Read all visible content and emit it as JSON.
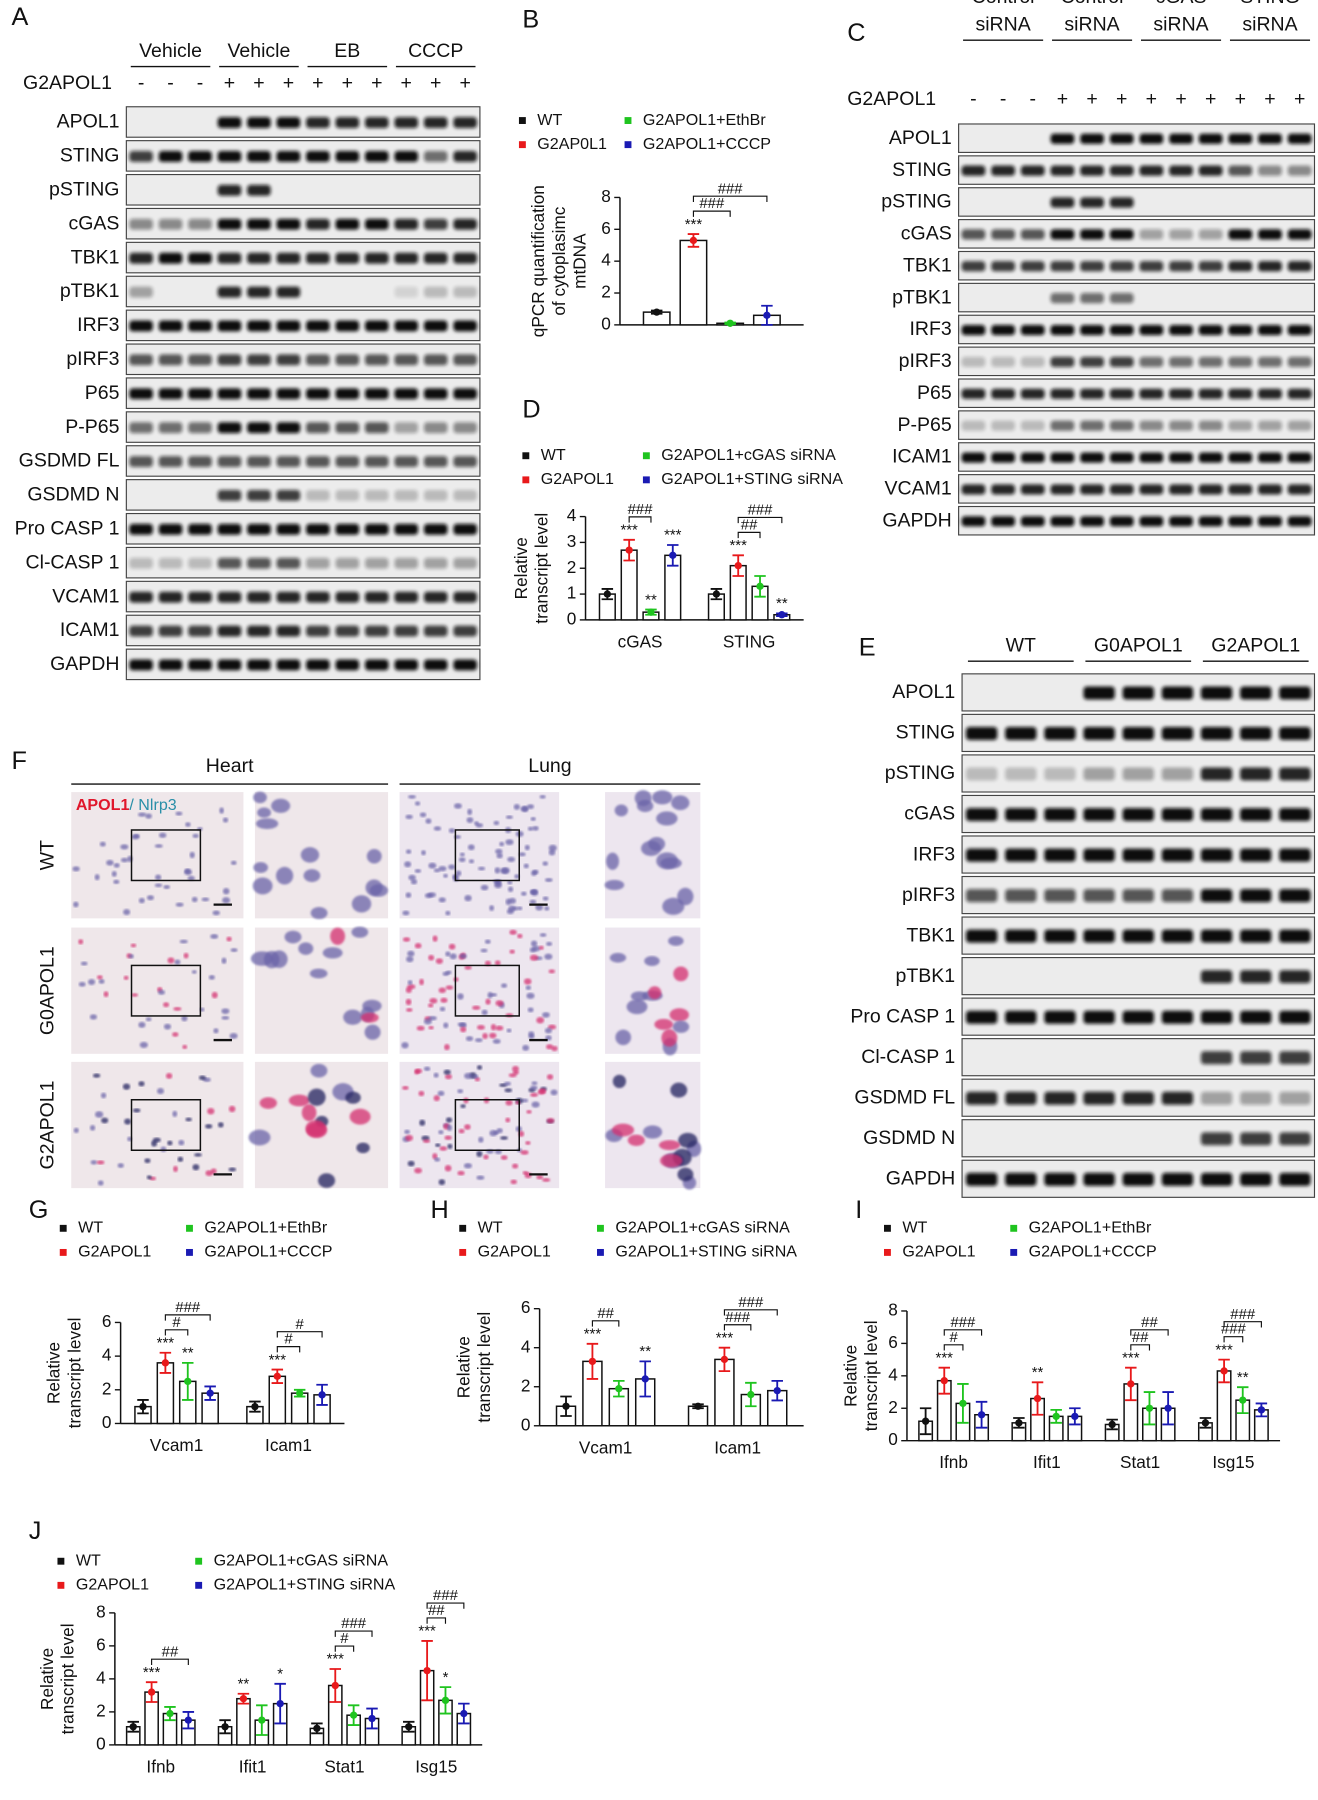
{
  "blots": [
    {
      "panel": "A",
      "groups": [
        "Vehicle",
        "Vehicle",
        "EB",
        "CCCP"
      ],
      "treatment": "G2APOL1",
      "lanes": [
        "-",
        "-",
        "-",
        "+",
        "+",
        "+",
        "+",
        "+",
        "+",
        "+",
        "+",
        "+"
      ],
      "rows": [
        "APOL1",
        "STING",
        "pSTING",
        "cGAS",
        "TBK1",
        "pTBK1",
        "IRF3",
        "pIRF3",
        "P65",
        "P-P65",
        "GSDMD FL",
        "GSDMD N",
        "Pro CASP 1",
        "Cl-CASP 1",
        "VCAM1",
        "ICAM1",
        "GAPDH"
      ]
    },
    {
      "panel": "C",
      "groups": [
        [
          "Control",
          "siRNA"
        ],
        [
          "Control",
          "siRNA"
        ],
        [
          "cGAS",
          "siRNA"
        ],
        [
          "STING",
          "siRNA"
        ]
      ],
      "treatment": "G2APOL1",
      "lanes": [
        "-",
        "-",
        "-",
        "+",
        "+",
        "+",
        "+",
        "+",
        "+",
        "+",
        "+",
        "+"
      ],
      "rows": [
        "APOL1",
        "STING",
        "pSTING",
        "cGAS",
        "TBK1",
        "pTBK1",
        "IRF3",
        "pIRF3",
        "P65",
        "P-P65",
        "ICAM1",
        "VCAM1",
        "GAPDH"
      ]
    },
    {
      "panel": "E",
      "groups": [
        "WT",
        "G0APOL1",
        "G2APOL1"
      ],
      "rows": [
        "APOL1",
        "STING",
        "pSTING",
        "cGAS",
        "IRF3",
        "pIRF3",
        "TBK1",
        "pTBK1",
        "Pro CASP 1",
        "Cl-CASP 1",
        "GSDMD FL",
        "GSDMD N",
        "GAPDH"
      ]
    }
  ],
  "histology": {
    "panel": "F",
    "tissues": [
      "Heart",
      "Lung"
    ],
    "stain": [
      "APOL1",
      "/ Nlrp3"
    ],
    "genotypes": [
      "WT",
      "G0APOL1",
      "G2APOL1"
    ]
  },
  "chart_data": [
    {
      "panel": "B",
      "type": "bar",
      "ylabel": [
        "qPCR quantification",
        "of cytoplasimc",
        "mtDNA"
      ],
      "categories": [
        null
      ],
      "series": [
        {
          "name": "WT",
          "color": "#111111",
          "values": [
            0.8
          ],
          "errors": [
            0.1
          ]
        },
        {
          "name": "G2AP0L1",
          "color": "#e8191b",
          "values": [
            5.3
          ],
          "errors": [
            0.4
          ],
          "stars": [
            "***"
          ]
        },
        {
          "name": "G2APOL1+EthBr",
          "color": "#1fc41f",
          "values": [
            0.1
          ],
          "errors": [
            0.05
          ]
        },
        {
          "name": "G2APOL1+CCCP",
          "color": "#1a1ab3",
          "values": [
            0.6
          ],
          "errors": [
            0.6
          ]
        }
      ],
      "brackets": [
        {
          "category": 0,
          "from": 1,
          "to": 2,
          "label": "###"
        },
        {
          "category": 0,
          "from": 1,
          "to": 3,
          "label": "###"
        }
      ],
      "ylim": [
        0,
        8
      ],
      "yticks": [
        0,
        2,
        4,
        6,
        8
      ]
    },
    {
      "panel": "D",
      "type": "bar",
      "ylabel": [
        "Relative",
        "transcript level"
      ],
      "categories": [
        "cGAS",
        "STING"
      ],
      "series": [
        {
          "name": "WT",
          "color": "#111111",
          "values": [
            1.0,
            1.0
          ],
          "errors": [
            0.2,
            0.2
          ]
        },
        {
          "name": "G2APOL1",
          "color": "#e8191b",
          "values": [
            2.7,
            2.1
          ],
          "errors": [
            0.4,
            0.4
          ],
          "stars": [
            "***",
            "***"
          ]
        },
        {
          "name": "G2APOL1+cGAS siRNA",
          "color": "#1fc41f",
          "values": [
            0.3,
            1.3
          ],
          "errors": [
            0.1,
            0.4
          ],
          "stars": [
            "**",
            null
          ]
        },
        {
          "name": "G2APOL1+STING siRNA",
          "color": "#1a1ab3",
          "values": [
            2.5,
            0.2
          ],
          "errors": [
            0.4,
            0.05
          ],
          "stars": [
            "***",
            "**"
          ]
        }
      ],
      "brackets": [
        {
          "category": 0,
          "from": 1,
          "to": 2,
          "label": "###"
        },
        {
          "category": 1,
          "from": 1,
          "to": 2,
          "label": "##"
        },
        {
          "category": 1,
          "from": 1,
          "to": 3,
          "label": "###"
        }
      ],
      "ylim": [
        0,
        4
      ],
      "yticks": [
        0,
        1,
        2,
        3,
        4
      ]
    },
    {
      "panel": "G",
      "type": "bar",
      "ylabel": [
        "Relative",
        "transcript level"
      ],
      "categories": [
        "Vcam1",
        "Icam1"
      ],
      "series": [
        {
          "name": "WT",
          "color": "#111111",
          "values": [
            1.0,
            1.0
          ],
          "errors": [
            0.4,
            0.3
          ]
        },
        {
          "name": "G2APOL1",
          "color": "#e8191b",
          "values": [
            3.6,
            2.8
          ],
          "errors": [
            0.6,
            0.4
          ],
          "stars": [
            "***",
            "***"
          ]
        },
        {
          "name": "G2APOL1+EthBr",
          "color": "#1fc41f",
          "values": [
            2.5,
            1.8
          ],
          "errors": [
            1.1,
            0.2
          ],
          "stars": [
            "**",
            null
          ]
        },
        {
          "name": "G2APOL1+CCCP",
          "color": "#1a1ab3",
          "values": [
            1.8,
            1.7
          ],
          "errors": [
            0.4,
            0.6
          ]
        }
      ],
      "brackets": [
        {
          "category": 0,
          "from": 1,
          "to": 2,
          "label": "#"
        },
        {
          "category": 0,
          "from": 1,
          "to": 3,
          "label": "###"
        },
        {
          "category": 1,
          "from": 1,
          "to": 2,
          "label": "#"
        },
        {
          "category": 1,
          "from": 1,
          "to": 3,
          "label": "#"
        }
      ],
      "ylim": [
        0,
        6
      ],
      "yticks": [
        0,
        2,
        4,
        6
      ]
    },
    {
      "panel": "H",
      "type": "bar",
      "ylabel": [
        "Relative",
        "transcript level"
      ],
      "categories": [
        "Vcam1",
        "Icam1"
      ],
      "series": [
        {
          "name": "WT",
          "color": "#111111",
          "values": [
            1.0,
            1.0
          ],
          "errors": [
            0.5,
            0.1
          ]
        },
        {
          "name": "G2APOL1",
          "color": "#e8191b",
          "values": [
            3.3,
            3.4
          ],
          "errors": [
            0.9,
            0.6
          ],
          "stars": [
            "***",
            "***"
          ]
        },
        {
          "name": "G2APOL1+cGAS siRNA",
          "color": "#1fc41f",
          "values": [
            1.9,
            1.6
          ],
          "errors": [
            0.4,
            0.6
          ]
        },
        {
          "name": "G2APOL1+STING siRNA",
          "color": "#1a1ab3",
          "values": [
            2.4,
            1.8
          ],
          "errors": [
            0.9,
            0.5
          ],
          "stars": [
            "**",
            null
          ]
        }
      ],
      "brackets": [
        {
          "category": 0,
          "from": 1,
          "to": 2,
          "label": "##"
        },
        {
          "category": 1,
          "from": 1,
          "to": 2,
          "label": "###"
        },
        {
          "category": 1,
          "from": 1,
          "to": 3,
          "label": "###"
        }
      ],
      "ylim": [
        0,
        6
      ],
      "yticks": [
        0,
        2,
        4,
        6
      ]
    },
    {
      "panel": "I",
      "type": "bar",
      "ylabel": [
        "Relative",
        "transcript level"
      ],
      "categories": [
        "Ifnb",
        "Ifit1",
        "Stat1",
        "Isg15"
      ],
      "series": [
        {
          "name": "WT",
          "color": "#111111",
          "values": [
            1.2,
            1.1,
            1.0,
            1.1
          ],
          "errors": [
            0.8,
            0.3,
            0.3,
            0.3
          ]
        },
        {
          "name": "G2APOL1",
          "color": "#e8191b",
          "values": [
            3.7,
            2.6,
            3.5,
            4.3
          ],
          "errors": [
            0.8,
            1.0,
            1.0,
            0.7
          ],
          "stars": [
            "***",
            "**",
            "***",
            "***"
          ]
        },
        {
          "name": "G2APOL1+EthBr",
          "color": "#1fc41f",
          "values": [
            2.3,
            1.5,
            2.0,
            2.5
          ],
          "errors": [
            1.2,
            0.4,
            1.0,
            0.8
          ],
          "stars": [
            null,
            null,
            null,
            "**"
          ]
        },
        {
          "name": "G2APOL1+CCCP",
          "color": "#1a1ab3",
          "values": [
            1.6,
            1.5,
            2.0,
            1.9
          ],
          "errors": [
            0.8,
            0.5,
            1.0,
            0.4
          ]
        }
      ],
      "brackets": [
        {
          "category": 0,
          "from": 1,
          "to": 2,
          "label": "#"
        },
        {
          "category": 0,
          "from": 1,
          "to": 3,
          "label": "###"
        },
        {
          "category": 2,
          "from": 1,
          "to": 2,
          "label": "##"
        },
        {
          "category": 2,
          "from": 1,
          "to": 3,
          "label": "##"
        },
        {
          "category": 3,
          "from": 1,
          "to": 2,
          "label": "###"
        },
        {
          "category": 3,
          "from": 1,
          "to": 3,
          "label": "###"
        }
      ],
      "ylim": [
        0,
        8
      ],
      "yticks": [
        0,
        2,
        4,
        6,
        8
      ]
    },
    {
      "panel": "J",
      "type": "bar",
      "ylabel": [
        "Relative",
        "transcript level"
      ],
      "categories": [
        "Ifnb",
        "Ifit1",
        "Stat1",
        "Isg15"
      ],
      "series": [
        {
          "name": "WT",
          "color": "#111111",
          "values": [
            1.1,
            1.1,
            1.0,
            1.1
          ],
          "errors": [
            0.3,
            0.4,
            0.3,
            0.3
          ]
        },
        {
          "name": "G2APOL1",
          "color": "#e8191b",
          "values": [
            3.2,
            2.8,
            3.6,
            4.5
          ],
          "errors": [
            0.6,
            0.3,
            1.0,
            1.8
          ],
          "stars": [
            "***",
            "**",
            "***",
            "***"
          ]
        },
        {
          "name": "G2APOL1+cGAS siRNA",
          "color": "#1fc41f",
          "values": [
            1.9,
            1.5,
            1.8,
            2.7
          ],
          "errors": [
            0.4,
            0.9,
            0.6,
            0.8
          ],
          "stars": [
            null,
            null,
            null,
            "*"
          ]
        },
        {
          "name": "G2APOL1+STING siRNA",
          "color": "#1a1ab3",
          "values": [
            1.5,
            2.5,
            1.6,
            1.9
          ],
          "errors": [
            0.5,
            1.2,
            0.6,
            0.6
          ],
          "stars": [
            null,
            "*",
            null,
            null
          ]
        }
      ],
      "brackets": [
        {
          "category": 0,
          "from": 1,
          "to": 3,
          "label": "##"
        },
        {
          "category": 2,
          "from": 1,
          "to": 2,
          "label": "#"
        },
        {
          "category": 2,
          "from": 1,
          "to": 3,
          "label": "###"
        },
        {
          "category": 3,
          "from": 1,
          "to": 2,
          "label": "##"
        },
        {
          "category": 3,
          "from": 1,
          "to": 3,
          "label": "###"
        }
      ],
      "ylim": [
        0,
        8
      ],
      "yticks": [
        0,
        2,
        4,
        6,
        8
      ]
    }
  ]
}
